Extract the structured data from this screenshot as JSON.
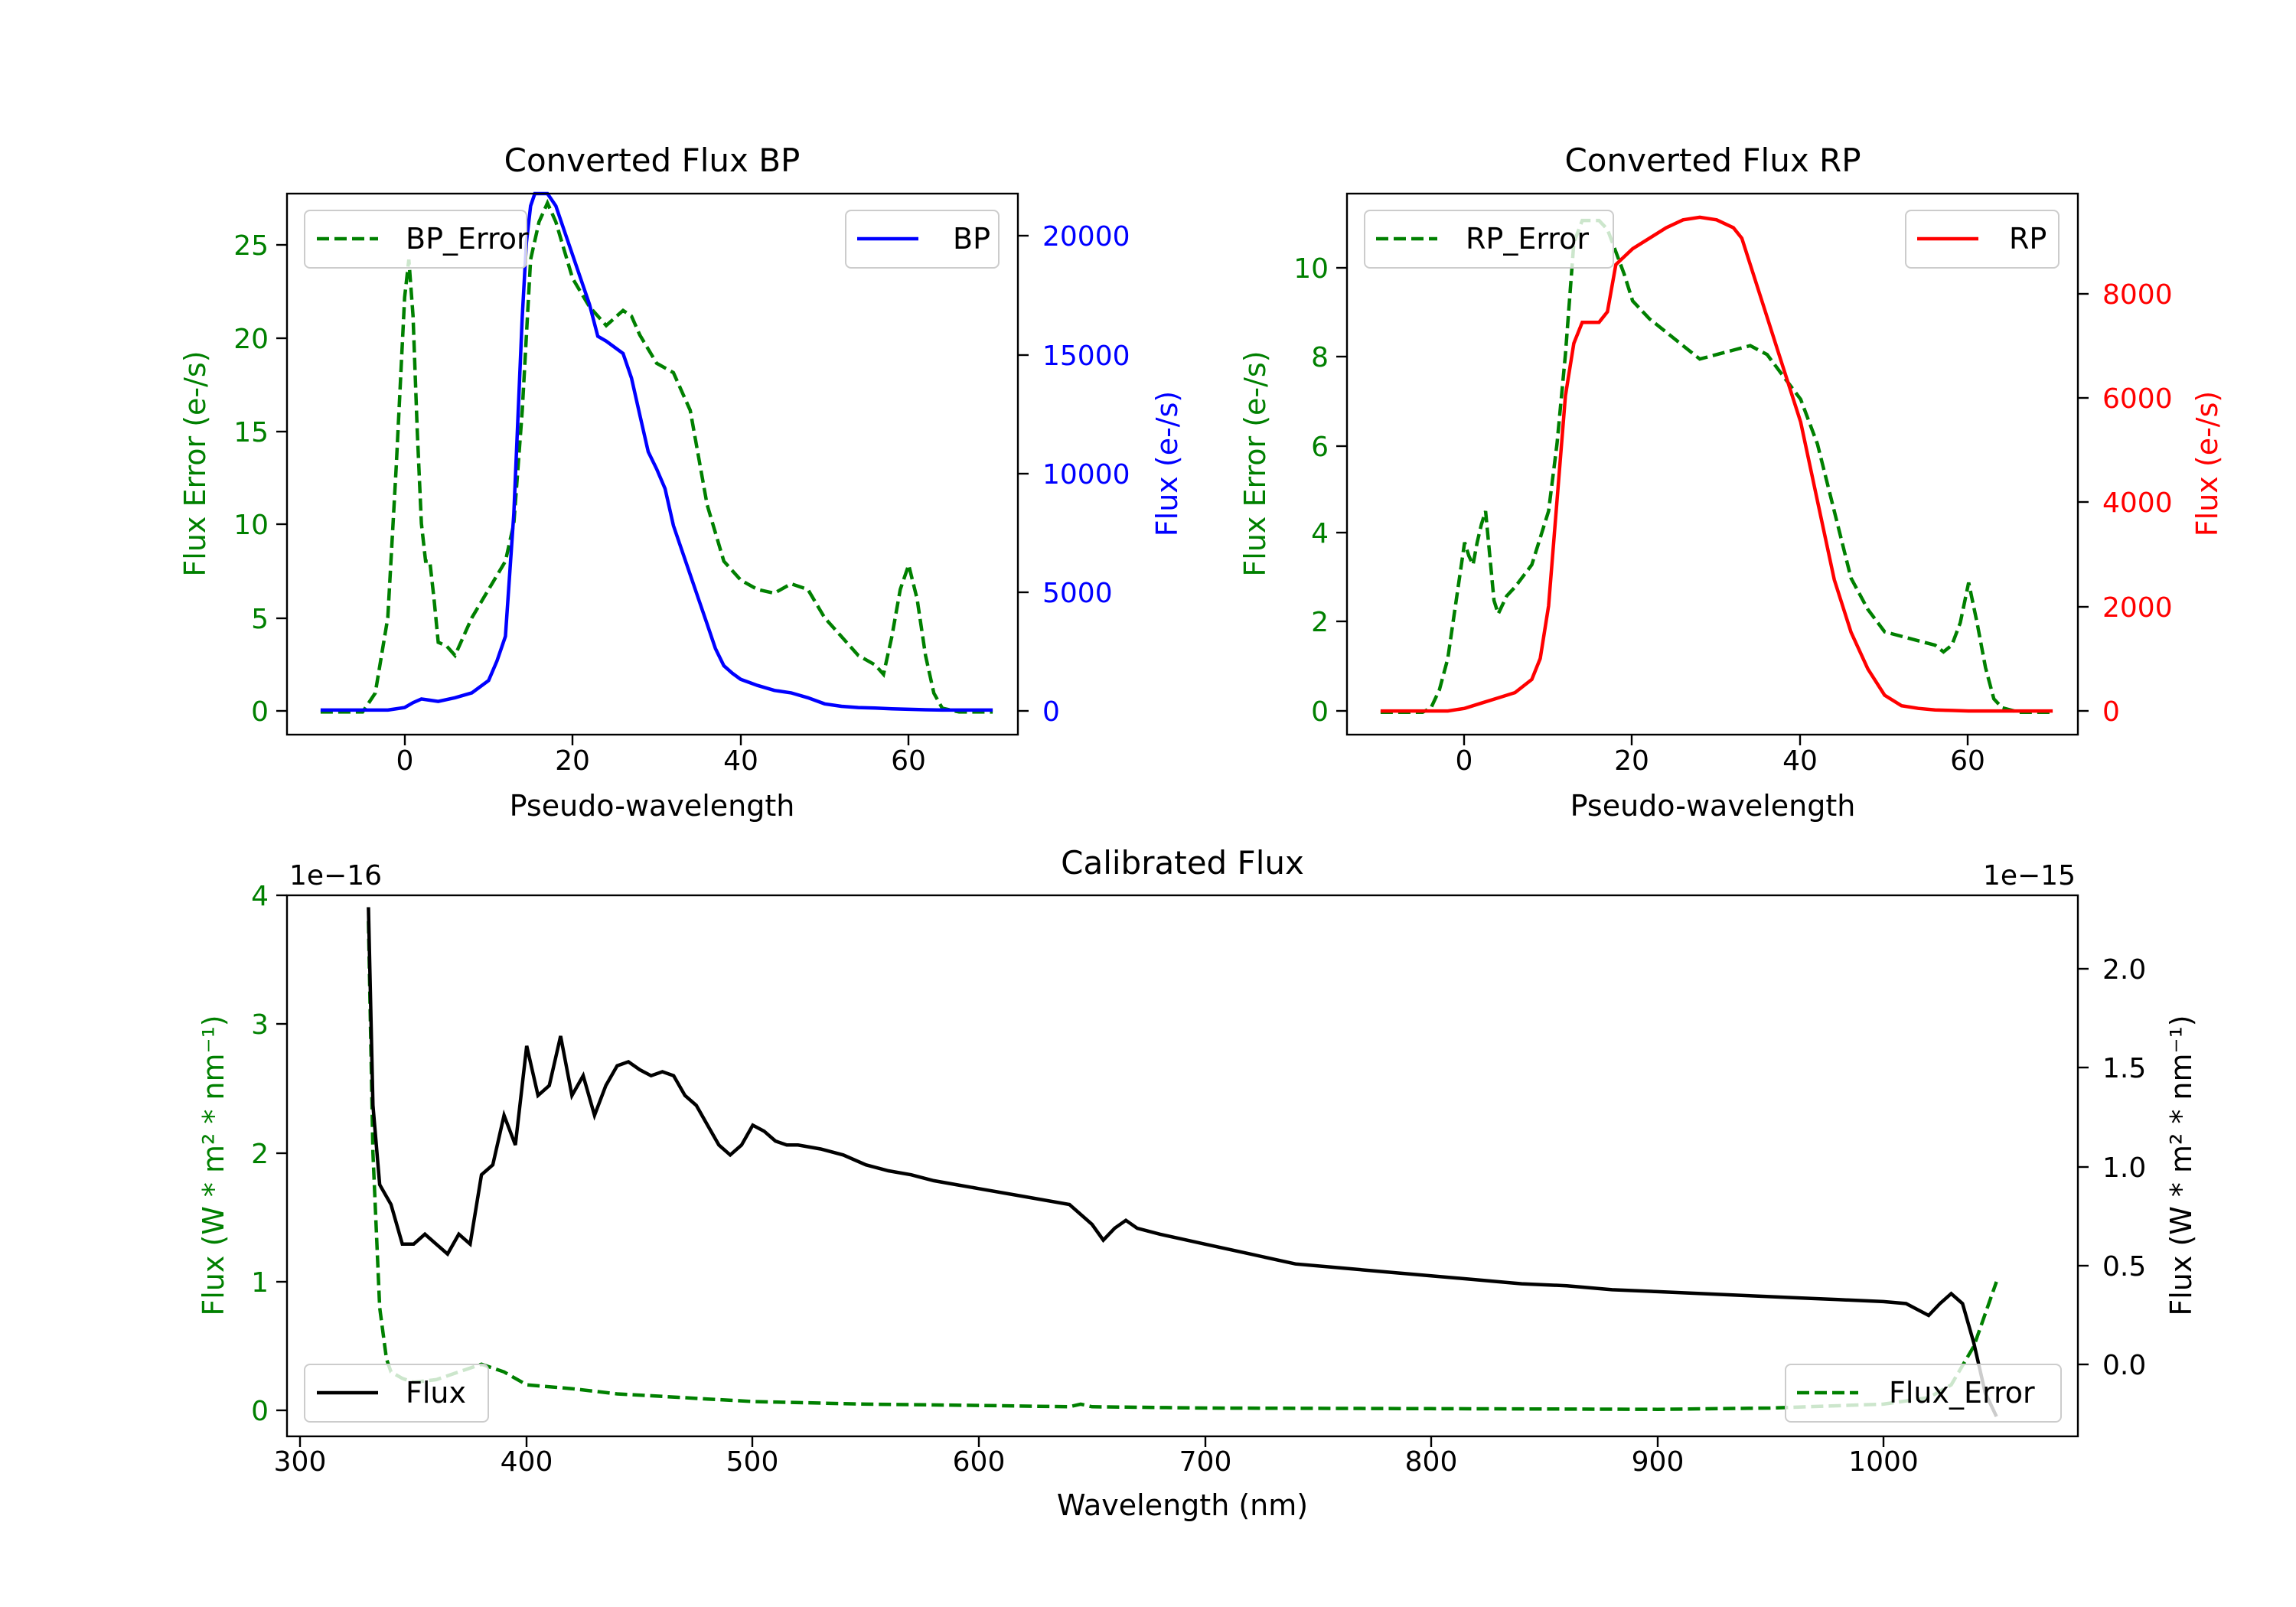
{
  "figure": {
    "background": "#ffffff"
  },
  "colors": {
    "bp": "#0000ff",
    "rp": "#ff0000",
    "error": "#008000",
    "flux": "#000000",
    "axis": "#000000"
  },
  "chart_data": [
    {
      "id": "bp",
      "type": "line",
      "title": "Converted Flux BP",
      "xlabel": "Pseudo-wavelength",
      "ylabel_left": "Flux Error (e-/s)",
      "ylabel_right": "Flux (e-/s)",
      "xlim": [
        -14,
        73
      ],
      "ylim_left": [
        -1.2,
        27.5
      ],
      "ylim_right": [
        -1000,
        21000
      ],
      "xticks": [
        0,
        20,
        40,
        60
      ],
      "yticks_left": [
        0,
        5,
        10,
        15,
        20,
        25
      ],
      "yticks_right": [
        0,
        5000,
        10000,
        15000,
        20000
      ],
      "ytick_labels_left": [
        "0",
        "5",
        "10",
        "15",
        "20",
        "25"
      ],
      "ytick_labels_right": [
        "0",
        "5000",
        "10000",
        "15000",
        "20000"
      ],
      "legend_left": "BP_Error",
      "legend_right": "BP",
      "error_series": {
        "name": "BP_Error",
        "x": [
          -10,
          -5,
          -3.5,
          -2,
          -1,
          0,
          0.5,
          1,
          1.5,
          2,
          2.5,
          3,
          3.5,
          4,
          5,
          6,
          7,
          8,
          10,
          12,
          13,
          14,
          15,
          16,
          17,
          18,
          19,
          20,
          22,
          24,
          26,
          27,
          28,
          30,
          32,
          34,
          36,
          38,
          40,
          42,
          44,
          46,
          48,
          50,
          52,
          54,
          56,
          57,
          58,
          59,
          60,
          61,
          62,
          63,
          64,
          66,
          70
        ],
        "y": [
          0,
          0,
          1,
          5,
          13,
          22,
          24,
          21,
          15,
          10,
          8,
          8,
          6,
          3.7,
          3.5,
          3,
          4,
          5,
          6.5,
          8,
          10,
          16,
          24,
          26,
          27,
          26,
          24.5,
          23,
          21.5,
          20.5,
          21.3,
          21,
          20,
          18.5,
          18,
          16,
          11,
          8,
          7,
          6.5,
          6.3,
          6.8,
          6.5,
          5,
          4,
          3,
          2.5,
          2,
          4,
          6.5,
          7.8,
          6,
          3,
          1,
          0.2,
          0,
          0
        ]
      },
      "flux_series": {
        "name": "BP",
        "x": [
          -10,
          -5,
          -2,
          0,
          1,
          2,
          3,
          4,
          6,
          8,
          10,
          11,
          12,
          13,
          14,
          14.5,
          15,
          15.5,
          16,
          17,
          18,
          19,
          20,
          21,
          22,
          23,
          24,
          26,
          27,
          28,
          29,
          30,
          31,
          32,
          33,
          34,
          35,
          36,
          37,
          38,
          39,
          40,
          42,
          44,
          46,
          48,
          50,
          52,
          54,
          56,
          58,
          60,
          62,
          64,
          66,
          70
        ],
        "y": [
          0,
          0,
          0,
          100,
          300,
          450,
          400,
          350,
          500,
          700,
          1200,
          2000,
          3000,
          8000,
          16000,
          19000,
          20500,
          21000,
          21000,
          21000,
          20500,
          19500,
          18500,
          17500,
          16500,
          15200,
          15000,
          14500,
          13500,
          12000,
          10500,
          9800,
          9000,
          7500,
          6500,
          5500,
          4500,
          3500,
          2500,
          1800,
          1500,
          1250,
          1000,
          800,
          700,
          500,
          250,
          150,
          100,
          80,
          50,
          30,
          10,
          0,
          0,
          0
        ]
      }
    },
    {
      "id": "rp",
      "type": "line",
      "title": "Converted Flux RP",
      "xlabel": "Pseudo-wavelength",
      "ylabel_left": "Flux Error (e-/s)",
      "ylabel_right": "Flux (e-/s)",
      "xlim": [
        -14,
        73
      ],
      "ylim_left": [
        -0.5,
        11.6
      ],
      "ylim_right": [
        -450,
        9850
      ],
      "xticks": [
        0,
        20,
        40,
        60
      ],
      "yticks_left": [
        0,
        2,
        4,
        6,
        8,
        10
      ],
      "yticks_right": [
        0,
        2000,
        4000,
        6000,
        8000
      ],
      "ytick_labels_left": [
        "0",
        "2",
        "4",
        "6",
        "8",
        "10"
      ],
      "ytick_labels_right": [
        "0",
        "2000",
        "4000",
        "6000",
        "8000"
      ],
      "legend_left": "RP_Error",
      "legend_right": "RP",
      "error_series": {
        "name": "RP_Error",
        "x": [
          -10,
          -5,
          -4,
          -3,
          -2,
          -1,
          0,
          0.5,
          1,
          1.5,
          2,
          2.5,
          3,
          3.5,
          4,
          5,
          6,
          8,
          10,
          11,
          12,
          13,
          14,
          15,
          16,
          17,
          18,
          19,
          20,
          22,
          24,
          26,
          28,
          30,
          32,
          34,
          36,
          38,
          40,
          42,
          44,
          46,
          48,
          50,
          52,
          54,
          56,
          57,
          58,
          59,
          60,
          61,
          62,
          63,
          64,
          66,
          70
        ],
        "y": [
          0,
          0,
          0.1,
          0.5,
          1.2,
          2.5,
          3.8,
          3.5,
          3.3,
          3.8,
          4.2,
          4.5,
          3.5,
          2.5,
          2.2,
          2.6,
          2.8,
          3.3,
          4.5,
          6,
          8,
          10.5,
          11,
          11,
          11,
          10.8,
          10.3,
          9.8,
          9.2,
          8.8,
          8.5,
          8.2,
          7.9,
          8,
          8.1,
          8.2,
          8,
          7.5,
          7,
          6,
          4.5,
          3,
          2.3,
          1.8,
          1.7,
          1.6,
          1.5,
          1.35,
          1.5,
          2,
          2.9,
          2,
          1,
          0.3,
          0.1,
          0,
          0
        ]
      },
      "flux_series": {
        "name": "RP",
        "x": [
          -10,
          -5,
          -2,
          0,
          2,
          4,
          6,
          8,
          9,
          10,
          11,
          12,
          13,
          14,
          15,
          16,
          17,
          18,
          20,
          22,
          24,
          26,
          28,
          30,
          32,
          33,
          34,
          36,
          38,
          40,
          42,
          44,
          46,
          48,
          50,
          52,
          54,
          56,
          58,
          60,
          62,
          64,
          66,
          70
        ],
        "y": [
          0,
          0,
          0,
          50,
          150,
          250,
          350,
          600,
          1000,
          2000,
          4000,
          6000,
          7000,
          7400,
          7400,
          7400,
          7600,
          8500,
          8800,
          9000,
          9200,
          9350,
          9400,
          9350,
          9200,
          9000,
          8500,
          7500,
          6500,
          5500,
          4000,
          2500,
          1500,
          800,
          300,
          100,
          50,
          20,
          10,
          0,
          0,
          0,
          0,
          0
        ]
      }
    },
    {
      "id": "calibrated",
      "type": "line",
      "title": "Calibrated Flux",
      "xlabel": "Wavelength (nm)",
      "ylabel_left": "Flux (W * m² * nm⁻¹)",
      "ylabel_right": "Flux (W * m² * nm⁻¹)",
      "left_scale_label": "1e−16",
      "right_scale_label": "1e−15",
      "xlim": [
        294,
        1086
      ],
      "ylim_left": [
        -0.2,
        4.0
      ],
      "ylim_right": [
        -0.37,
        2.36
      ],
      "xticks": [
        300,
        400,
        500,
        600,
        700,
        800,
        900,
        1000
      ],
      "yticks_left": [
        0,
        1,
        2,
        3,
        4
      ],
      "yticks_right": [
        0.0,
        0.5,
        1.0,
        1.5,
        2.0
      ],
      "ytick_labels_left": [
        "0",
        "1",
        "2",
        "3",
        "4"
      ],
      "ytick_labels_right": [
        "0.0",
        "0.5",
        "1.0",
        "1.5",
        "2.0"
      ],
      "legend_left": "Flux",
      "legend_right": "Flux_Error",
      "flux_series": {
        "name": "Flux",
        "x": [
          330,
          332,
          335,
          340,
          345,
          350,
          355,
          360,
          365,
          370,
          375,
          380,
          385,
          390,
          395,
          400,
          405,
          410,
          415,
          420,
          425,
          430,
          435,
          440,
          445,
          450,
          455,
          460,
          465,
          470,
          475,
          480,
          485,
          490,
          495,
          500,
          505,
          510,
          515,
          520,
          530,
          540,
          550,
          560,
          570,
          580,
          590,
          600,
          620,
          640,
          650,
          655,
          660,
          665,
          670,
          680,
          700,
          720,
          740,
          760,
          780,
          800,
          820,
          840,
          860,
          880,
          900,
          920,
          940,
          960,
          980,
          1000,
          1010,
          1020,
          1025,
          1030,
          1035,
          1040,
          1045,
          1050
        ],
        "y": [
          2.3,
          1.3,
          0.9,
          0.8,
          0.6,
          0.6,
          0.65,
          0.6,
          0.55,
          0.65,
          0.6,
          0.95,
          1.0,
          1.25,
          1.1,
          1.6,
          1.35,
          1.4,
          1.65,
          1.35,
          1.45,
          1.25,
          1.4,
          1.5,
          1.52,
          1.48,
          1.45,
          1.47,
          1.45,
          1.35,
          1.3,
          1.2,
          1.1,
          1.05,
          1.1,
          1.2,
          1.17,
          1.12,
          1.1,
          1.1,
          1.08,
          1.05,
          1.0,
          0.97,
          0.95,
          0.92,
          0.9,
          0.88,
          0.84,
          0.8,
          0.7,
          0.62,
          0.68,
          0.72,
          0.68,
          0.65,
          0.6,
          0.55,
          0.5,
          0.48,
          0.46,
          0.44,
          0.42,
          0.4,
          0.39,
          0.37,
          0.36,
          0.35,
          0.34,
          0.33,
          0.32,
          0.31,
          0.3,
          0.24,
          0.3,
          0.35,
          0.3,
          0.1,
          -0.15,
          -0.27
        ]
      },
      "error_series": {
        "name": "Flux_Error",
        "x": [
          330,
          332,
          335,
          338,
          340,
          345,
          350,
          360,
          370,
          375,
          380,
          385,
          390,
          400,
          420,
          440,
          460,
          480,
          500,
          550,
          600,
          640,
          645,
          650,
          700,
          800,
          900,
          950,
          1000,
          1020,
          1030,
          1040,
          1050
        ],
        "y": [
          3.8,
          2.0,
          0.8,
          0.4,
          0.3,
          0.25,
          0.22,
          0.24,
          0.3,
          0.33,
          0.36,
          0.33,
          0.3,
          0.2,
          0.17,
          0.13,
          0.11,
          0.09,
          0.07,
          0.05,
          0.04,
          0.03,
          0.05,
          0.03,
          0.02,
          0.015,
          0.01,
          0.02,
          0.05,
          0.1,
          0.2,
          0.5,
          1.0
        ]
      }
    }
  ]
}
